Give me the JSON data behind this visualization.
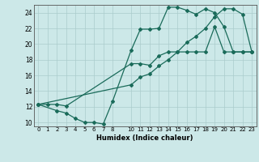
{
  "xlabel": "Humidex (Indice chaleur)",
  "xlim": [
    -0.5,
    23.5
  ],
  "ylim": [
    9.5,
    25.0
  ],
  "xticks": [
    0,
    1,
    2,
    3,
    4,
    5,
    6,
    7,
    8,
    10,
    11,
    12,
    13,
    14,
    15,
    16,
    17,
    18,
    19,
    20,
    21,
    22,
    23
  ],
  "yticks": [
    10,
    12,
    14,
    16,
    18,
    20,
    22,
    24
  ],
  "background_color": "#cce8e8",
  "grid_color": "#aacccc",
  "line_color": "#1a6b5a",
  "line1_x": [
    0,
    1,
    2,
    3,
    10,
    11,
    12,
    13,
    14,
    15,
    16,
    17,
    18,
    19,
    20,
    21,
    22,
    23
  ],
  "line1_y": [
    12.3,
    12.3,
    12.3,
    12.1,
    17.5,
    17.5,
    17.3,
    18.5,
    19.0,
    19.0,
    19.0,
    19.0,
    19.0,
    22.2,
    19.0,
    19.0,
    19.0,
    19.0
  ],
  "line2_x": [
    0,
    2,
    3,
    4,
    5,
    6,
    7,
    8,
    10,
    11,
    12,
    13,
    14,
    15,
    16,
    17,
    18,
    19,
    20,
    21,
    22,
    23
  ],
  "line2_y": [
    12.3,
    11.5,
    11.2,
    10.5,
    10.0,
    10.0,
    9.8,
    12.7,
    19.2,
    21.9,
    21.9,
    22.0,
    24.7,
    24.7,
    24.3,
    23.8,
    24.5,
    24.0,
    22.2,
    19.0,
    19.0,
    19.0
  ],
  "line3_x": [
    0,
    10,
    11,
    12,
    13,
    14,
    15,
    16,
    17,
    18,
    19,
    20,
    21,
    22,
    23
  ],
  "line3_y": [
    12.3,
    14.8,
    15.8,
    16.2,
    17.2,
    18.0,
    19.0,
    20.2,
    21.0,
    22.0,
    23.5,
    24.5,
    24.5,
    23.8,
    19.0
  ]
}
